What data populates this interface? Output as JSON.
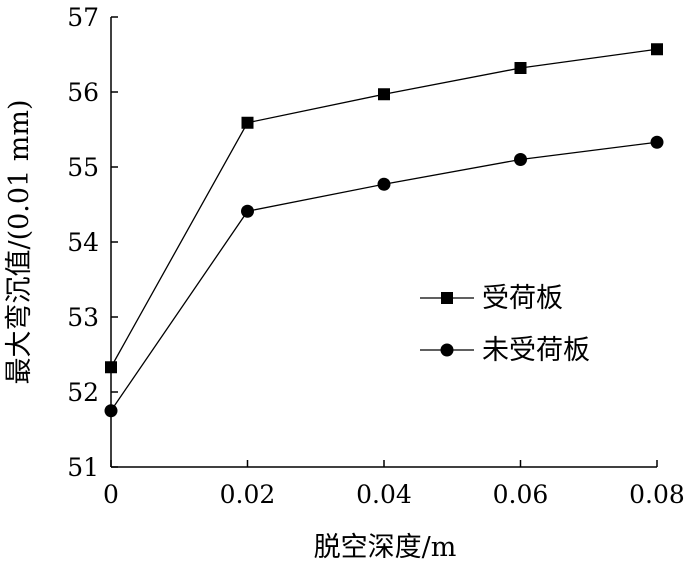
{
  "chart_data": {
    "type": "line",
    "title": "",
    "xlabel": "脱空深度/m",
    "ylabel": "最大弯沉值/(0.01 mm)",
    "x": [
      0,
      0.02,
      0.04,
      0.06,
      0.08
    ],
    "x_tick_labels": [
      "0",
      "0.02",
      "0.04",
      "0.06",
      "0.08"
    ],
    "y_tick_labels": [
      "51",
      "52",
      "53",
      "54",
      "55",
      "56",
      "57"
    ],
    "xlim": [
      0,
      0.08
    ],
    "ylim": [
      51,
      57
    ],
    "grid": false,
    "legend_position": "center-right",
    "series": [
      {
        "name": "受荷板",
        "marker": "square",
        "color": "#000000",
        "values": [
          52.33,
          55.59,
          55.97,
          56.32,
          56.57
        ]
      },
      {
        "name": "未受荷板",
        "marker": "circle",
        "color": "#000000",
        "values": [
          51.75,
          54.41,
          54.77,
          55.1,
          55.33
        ]
      }
    ]
  }
}
